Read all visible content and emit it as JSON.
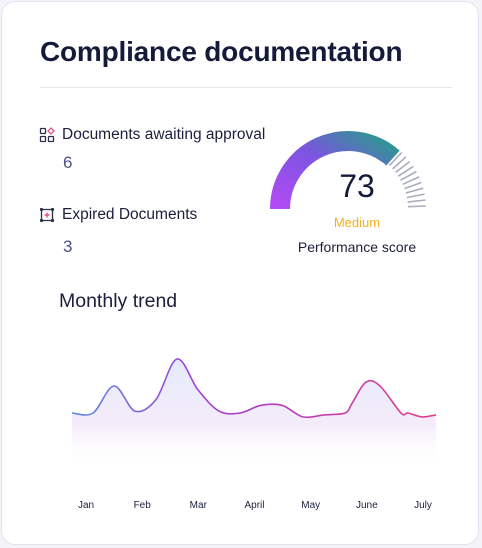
{
  "card": {
    "title": "Compliance documentation"
  },
  "metrics": [
    {
      "label": "Documents awaiting approval",
      "value": "6",
      "icon": "pending-documents-icon"
    },
    {
      "label": "Expired Documents",
      "value": "3",
      "icon": "expired-documents-icon"
    }
  ],
  "performance": {
    "score": "73",
    "score_value": 73,
    "rating": "Medium",
    "caption": "Performance score",
    "colors": {
      "start": "#b14bf4",
      "mid": "#7b55e0",
      "end": "#2b9a8f",
      "rating": "#f2b01e",
      "ticks": "#a9adbd"
    }
  },
  "trend": {
    "title": "Monthly trend",
    "colors": {
      "line_start": "#5b8ce0",
      "line_mid": "#a13dd6",
      "line_end": "#e0418a"
    }
  },
  "chart_data": {
    "type": "area",
    "categories": [
      "Jan",
      "Feb",
      "Mar",
      "April",
      "May",
      "June",
      "July"
    ],
    "x": [
      0,
      0.75,
      1.5,
      2.25,
      3,
      3.75,
      4.5,
      5.25,
      6,
      6.75,
      7.5,
      8.25,
      9,
      9.75,
      10,
      10.5,
      11,
      11.75,
      12,
      12.5,
      13
    ],
    "values": [
      28,
      28,
      42,
      29,
      35,
      56,
      40,
      29,
      28,
      32,
      32,
      26,
      27,
      28,
      33,
      44,
      42,
      28,
      28,
      26,
      27
    ],
    "title": "Monthly trend",
    "xlabel": "",
    "ylabel": "",
    "ylim": [
      0,
      70
    ],
    "grid": false
  }
}
